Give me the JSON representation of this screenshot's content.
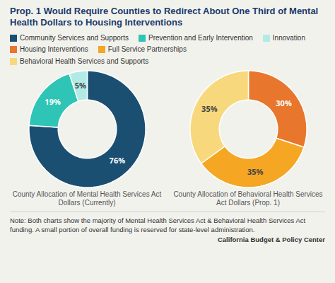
{
  "title": "Prop. 1 Would Require Counties to Redirect About One Third of Mental Health Dollars to Housing Interventions",
  "chart_data": [
    {
      "type": "pie",
      "title": "County Allocation of Mental Health Services Act Dollars (Currently)",
      "categories": [
        "Community Services and Supports",
        "Prevention and Early Intervention",
        "Innovation"
      ],
      "values": [
        76,
        19,
        5
      ],
      "value_labels": [
        "76%",
        "19%",
        "5%"
      ],
      "colors": [
        "#1b4f72",
        "#2ec4b6",
        "#b2ebe6"
      ],
      "data_labels": true,
      "legend": "top"
    },
    {
      "type": "pie",
      "title": "County Allocation of Behavioral Health Services Act Dollars (Prop. 1)",
      "categories": [
        "Housing Interventions",
        "Full Service Partnerships",
        "Behavioral Health Services and Supports"
      ],
      "values": [
        30,
        35,
        35
      ],
      "value_labels": [
        "30%",
        "35%",
        "35%"
      ],
      "colors": [
        "#e8762c",
        "#f5a623",
        "#f7d87c"
      ],
      "data_labels": true,
      "legend": "top"
    }
  ],
  "annotations": [
    "Note: Both charts show the majority of Mental Health Services Act & Behavioral Health Services Act funding. A small portion of overall funding is reserved for state-level administration.",
    "California Budget & Policy Center"
  ]
}
